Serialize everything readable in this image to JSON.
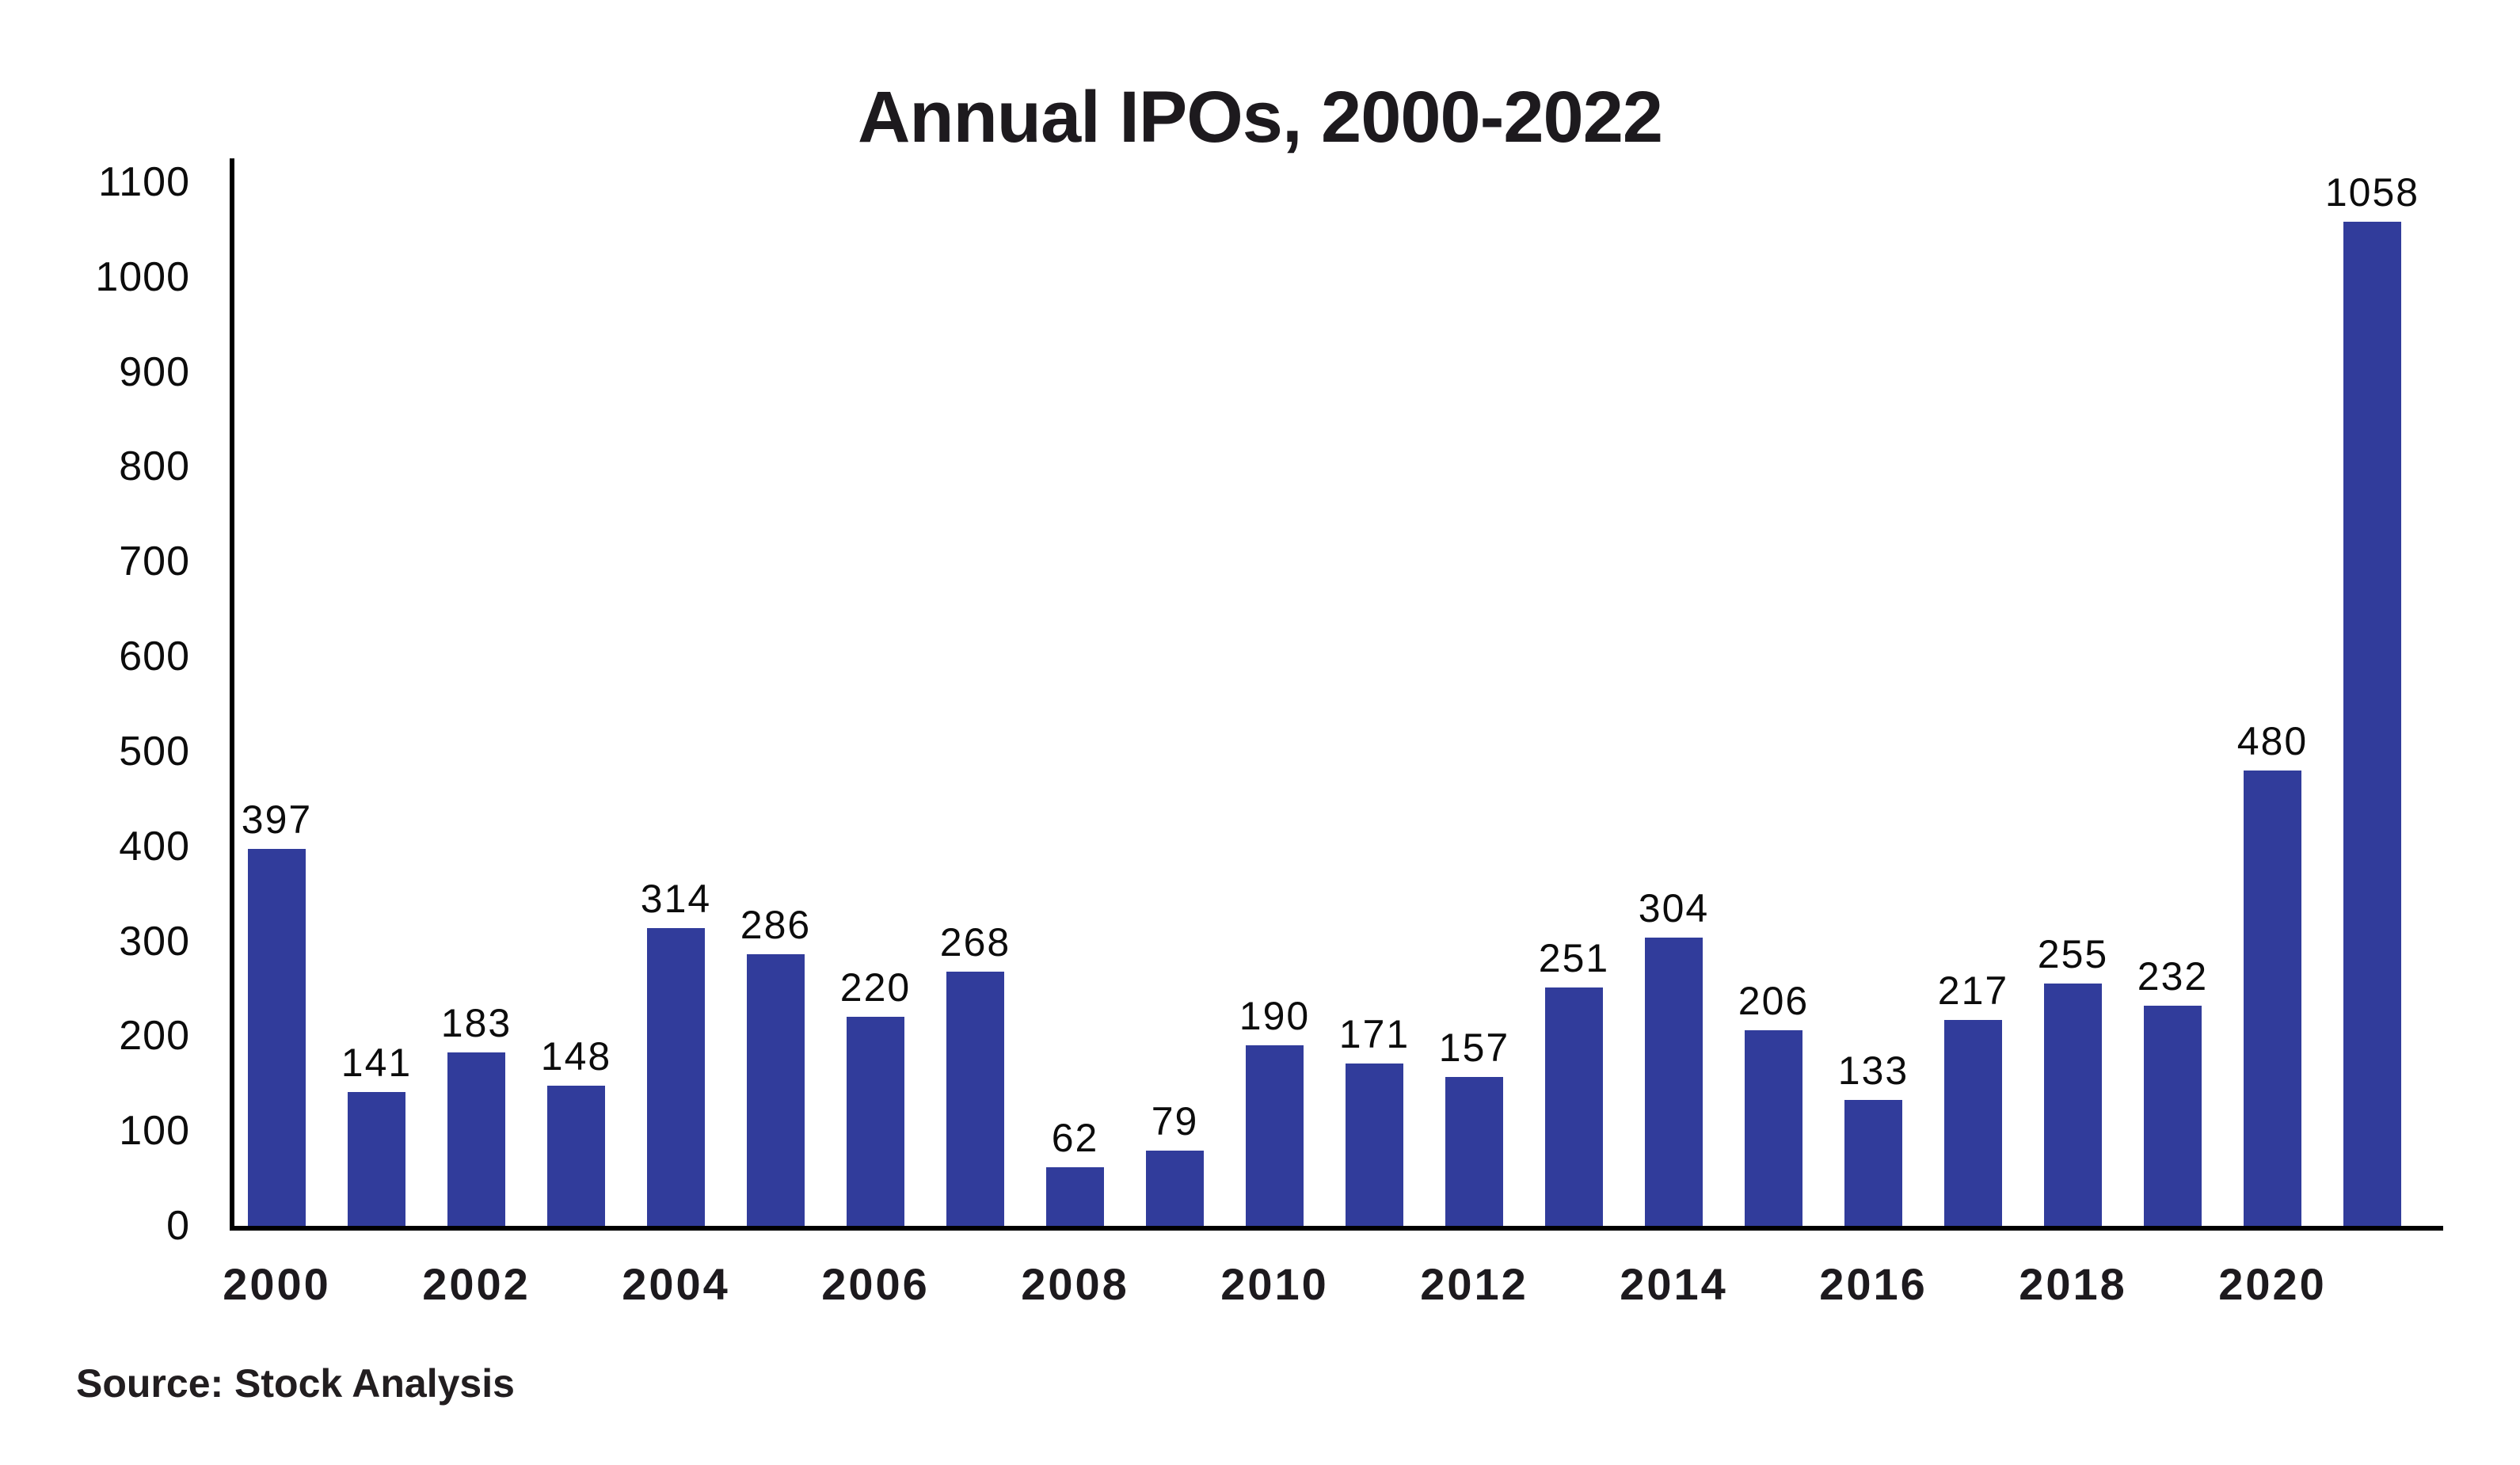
{
  "title": "Annual IPOs, 2000-2022",
  "source": "Source: Stock Analysis",
  "colors": {
    "bar": "#313c9b",
    "axis": "#000000",
    "text": "#0c0c0c"
  },
  "chart_data": {
    "type": "bar",
    "title": "Annual IPOs, 2000-2022",
    "xlabel": "",
    "ylabel": "",
    "x": [
      2000,
      2001,
      2002,
      2003,
      2004,
      2005,
      2006,
      2007,
      2008,
      2009,
      2010,
      2011,
      2012,
      2013,
      2014,
      2015,
      2016,
      2017,
      2018,
      2019,
      2020,
      2021
    ],
    "values": [
      397,
      141,
      183,
      148,
      314,
      286,
      220,
      268,
      62,
      79,
      190,
      171,
      157,
      251,
      304,
      206,
      133,
      217,
      255,
      232,
      480,
      1058
    ],
    "bar_value_labels": [
      "397",
      "141",
      "183",
      "148",
      "314",
      "286",
      "220",
      "268",
      "62",
      "79",
      "190",
      "171",
      "157",
      "251",
      "304",
      "206",
      "133",
      "217",
      "255",
      "232",
      "480",
      "1058"
    ],
    "ylim": [
      0,
      1100
    ],
    "ytick_interval": 100,
    "ytick_labels": [
      "0",
      "100",
      "200",
      "300",
      "400",
      "500",
      "600",
      "700",
      "800",
      "900",
      "1000",
      "1100"
    ],
    "xtick_labels": [
      "2000",
      "2002",
      "2004",
      "2006",
      "2008",
      "2010",
      "2012",
      "2014",
      "2016",
      "2018",
      "2020"
    ],
    "grid": false,
    "legend": false,
    "annotation": "source note bottom-left"
  }
}
